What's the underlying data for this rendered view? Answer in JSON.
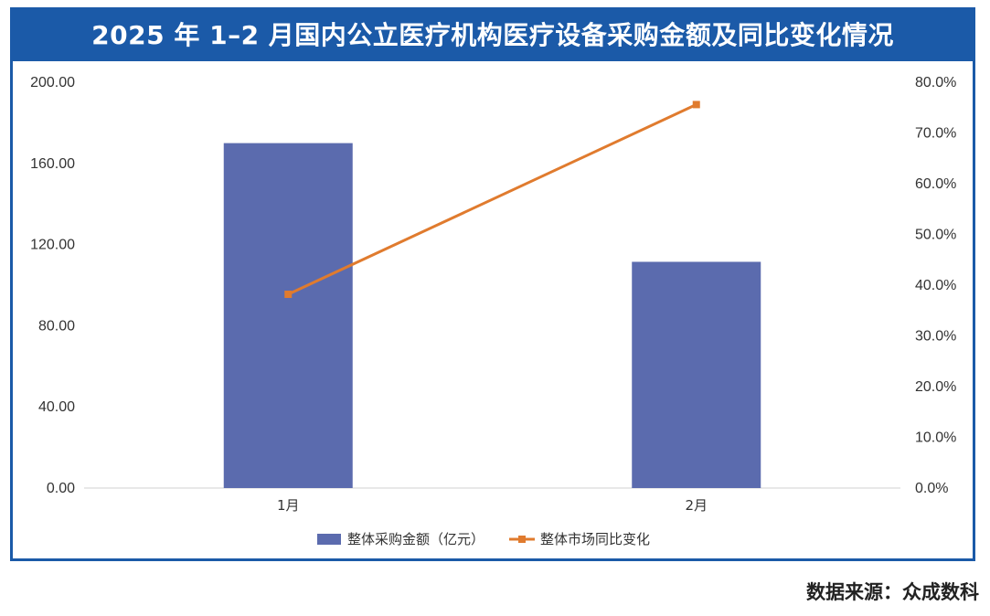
{
  "title": "2025 年 1–2 月国内公立医疗机构医疗设备采购金额及同比变化情况",
  "source": "数据来源：众成数科",
  "colors": {
    "frame": "#1b5aa8",
    "bar": "#5b6bae",
    "line": "#e07b2e"
  },
  "chart_data": {
    "type": "bar+line",
    "categories": [
      "1月",
      "2月"
    ],
    "series": [
      {
        "name": "整体采购金额（亿元）",
        "type": "bar",
        "axis": "left",
        "values": [
          170.0,
          111.5
        ]
      },
      {
        "name": "整体市场同比变化",
        "type": "line",
        "axis": "right",
        "values": [
          38.2,
          75.6
        ]
      }
    ],
    "y_left": {
      "range": [
        0,
        200
      ],
      "ticks": [
        "0.00",
        "40.00",
        "80.00",
        "120.00",
        "160.00",
        "200.00"
      ],
      "tick_values": [
        0,
        40,
        80,
        120,
        160,
        200
      ]
    },
    "y_right": {
      "range": [
        0,
        80
      ],
      "ticks": [
        "0.0%",
        "10.0%",
        "20.0%",
        "30.0%",
        "40.0%",
        "50.0%",
        "60.0%",
        "70.0%",
        "80.0%"
      ],
      "tick_values": [
        0,
        10,
        20,
        30,
        40,
        50,
        60,
        70,
        80
      ]
    },
    "grid": false,
    "legend_position": "bottom"
  }
}
